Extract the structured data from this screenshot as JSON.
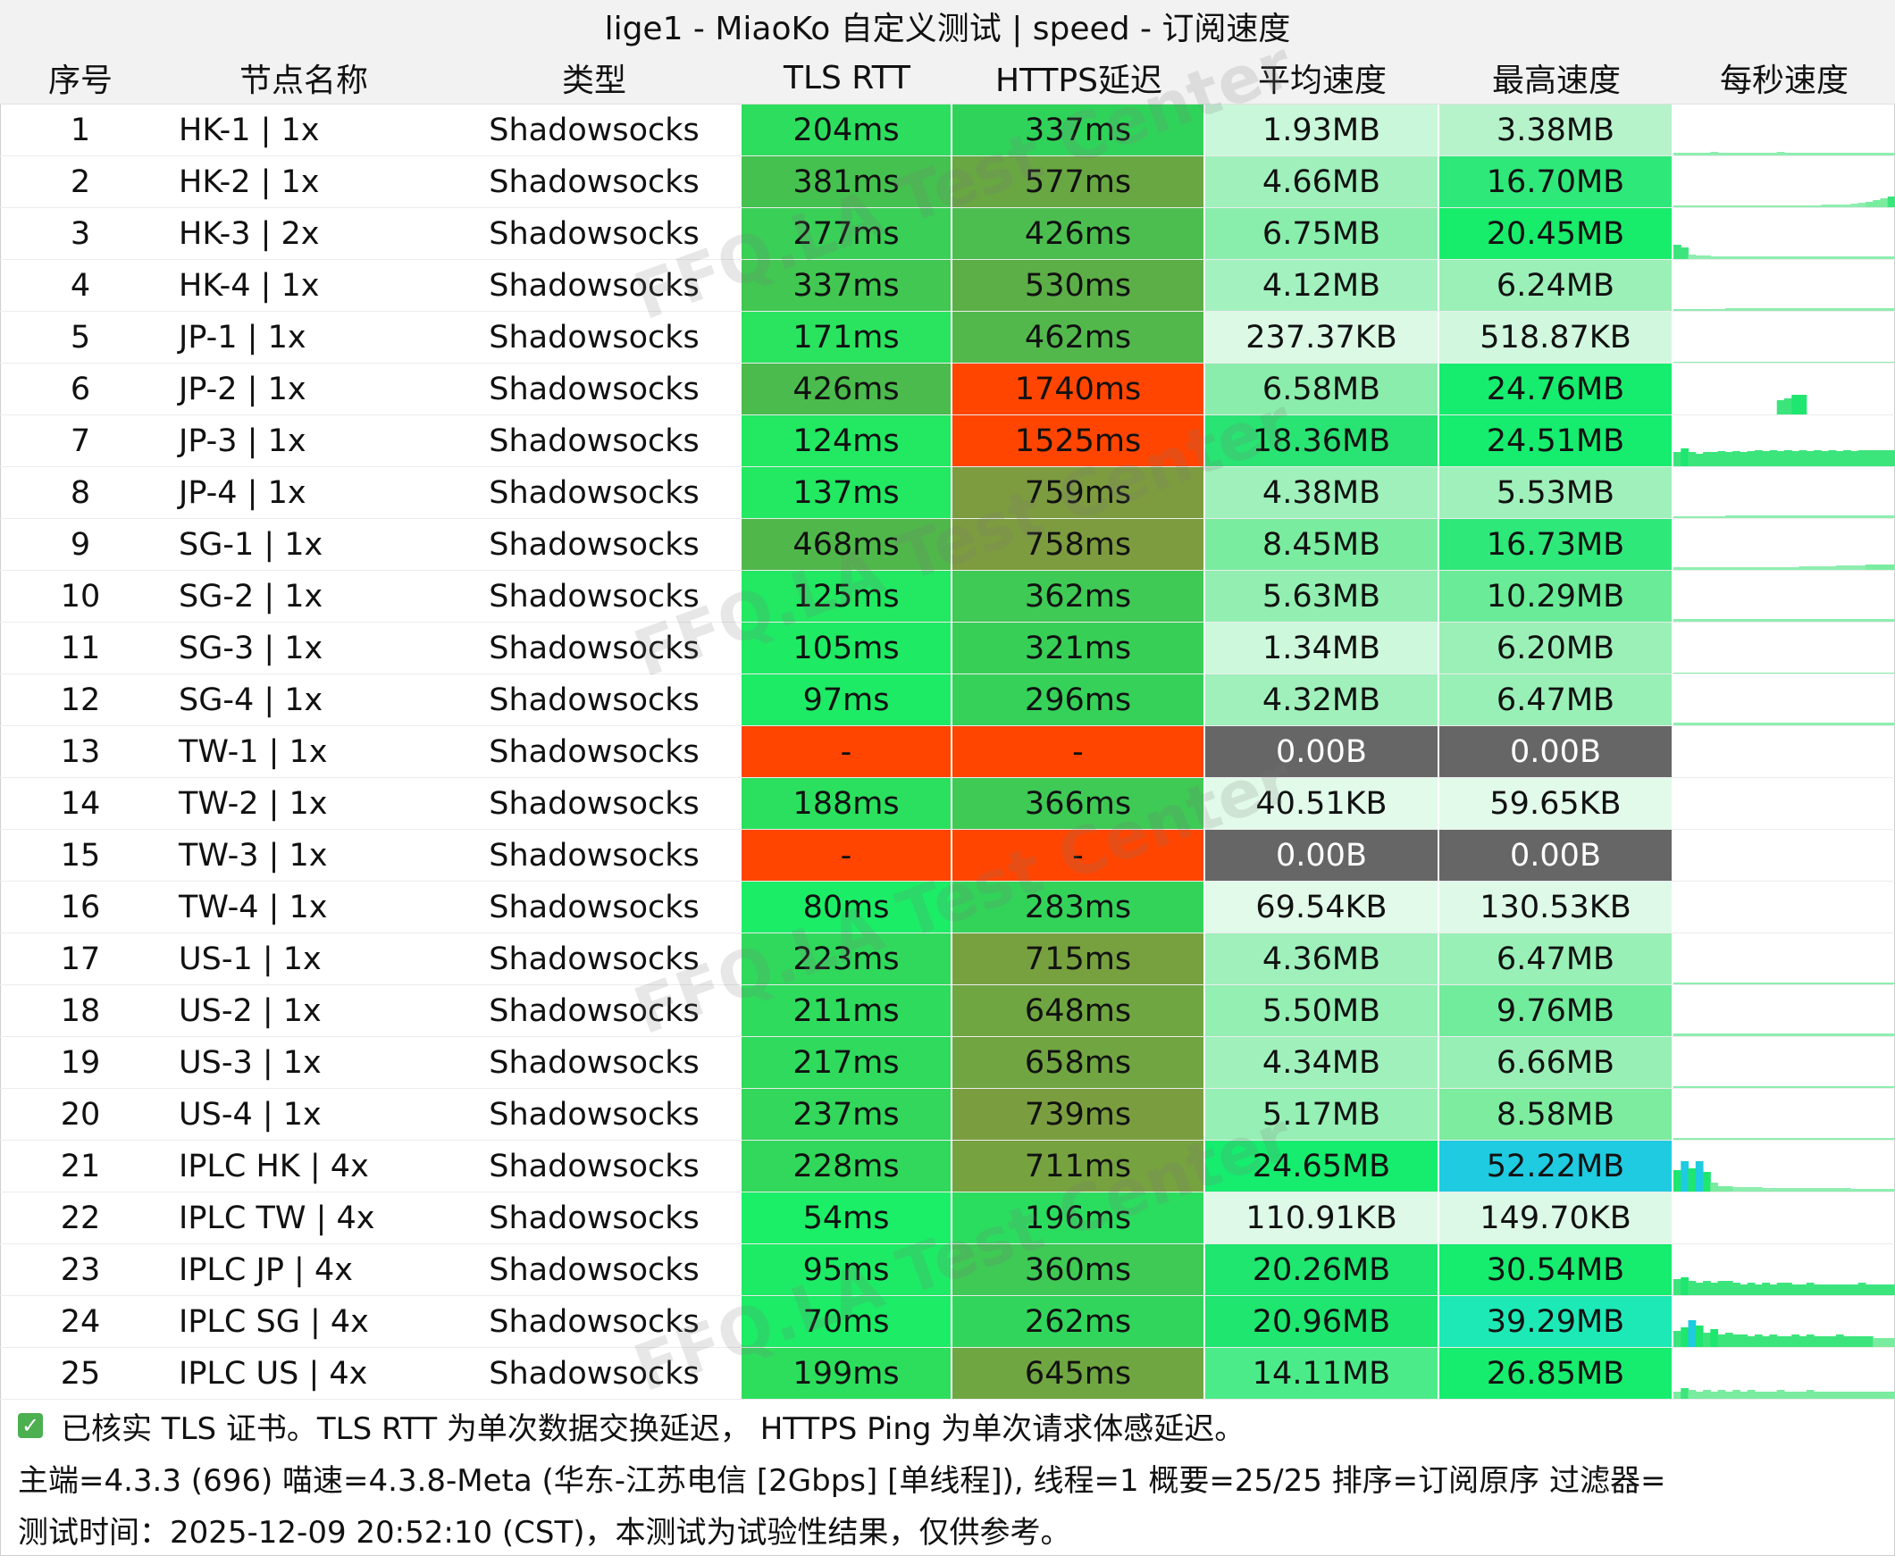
{
  "title": "lige1 - MiaoKo 自定义测试 | speed - 订阅速度",
  "columns": [
    "序号",
    "节点名称",
    "类型",
    "TLS RTT",
    "HTTPS延迟",
    "平均速度",
    "最高速度",
    "每秒速度"
  ],
  "colors": {
    "fail": "#ff4500",
    "zero_speed": "#666666",
    "speed_peak_blue": "#1ecbe1",
    "speed_peak_cyan": "#1de9b6"
  },
  "rows": [
    {
      "idx": "1",
      "name": "HK-1 | 1x",
      "type": "Shadowsocks",
      "tls": "204ms",
      "tls_color": "#2ddd5e",
      "https": "337ms",
      "https_color": "#30d35a",
      "avg": "1.93MB",
      "avg_color": "#c9f7d9",
      "max": "3.38MB",
      "max_color": "#b6f3cb",
      "spark": [
        3,
        3,
        3,
        3,
        3,
        4,
        3,
        3,
        3,
        3,
        3,
        3,
        3,
        3,
        4,
        3,
        3,
        3,
        3,
        3,
        3,
        3,
        3,
        3,
        3,
        3,
        3,
        3,
        3,
        3
      ]
    },
    {
      "idx": "2",
      "name": "HK-2 | 1x",
      "type": "Shadowsocks",
      "tls": "381ms",
      "tls_color": "#45c14f",
      "https": "577ms",
      "https_color": "#68a742",
      "avg": "4.66MB",
      "avg_color": "#9ff0bb",
      "max": "16.70MB",
      "max_color": "#2ee87a",
      "spark": [
        2,
        2,
        2,
        2,
        2,
        2,
        2,
        2,
        2,
        2,
        2,
        2,
        2,
        2,
        2,
        2,
        2,
        2,
        2,
        2,
        3,
        3,
        3,
        3,
        4,
        5,
        6,
        8,
        10,
        12
      ]
    },
    {
      "idx": "3",
      "name": "HK-3 | 2x",
      "type": "Shadowsocks",
      "tls": "277ms",
      "tls_color": "#3acf57",
      "https": "426ms",
      "https_color": "#4bbe4f",
      "avg": "6.75MB",
      "avg_color": "#89eeac",
      "max": "20.45MB",
      "max_color": "#18ec6b",
      "spark": [
        16,
        13,
        5,
        4,
        4,
        3,
        3,
        3,
        3,
        3,
        3,
        3,
        3,
        3,
        3,
        3,
        3,
        3,
        3,
        3,
        3,
        3,
        3,
        3,
        3,
        3,
        3,
        3,
        3,
        3
      ]
    },
    {
      "idx": "4",
      "name": "HK-4 | 1x",
      "type": "Shadowsocks",
      "tls": "337ms",
      "tls_color": "#41c752",
      "https": "530ms",
      "https_color": "#5cae47",
      "avg": "4.12MB",
      "avg_color": "#a3f1bf",
      "max": "6.24MB",
      "max_color": "#9bf0b7",
      "spark": [
        2,
        2,
        2,
        2,
        2,
        2,
        2,
        3,
        3,
        3,
        3,
        3,
        3,
        3,
        3,
        3,
        3,
        3,
        3,
        3,
        3,
        3,
        3,
        3,
        3,
        3,
        3,
        3,
        3,
        3
      ]
    },
    {
      "idx": "5",
      "name": "JP-1 | 1x",
      "type": "Shadowsocks",
      "tls": "171ms",
      "tls_color": "#2ae35f",
      "https": "462ms",
      "https_color": "#52b84c",
      "avg": "237.37KB",
      "avg_color": "#dcf9e6",
      "max": "518.87KB",
      "max_color": "#d1f8df",
      "spark": [
        1,
        1,
        1,
        1,
        1,
        1,
        1,
        1,
        1,
        1,
        1,
        1,
        1,
        1,
        1,
        1,
        1,
        1,
        1,
        1,
        1,
        1,
        1,
        1,
        1,
        1,
        1,
        1,
        1,
        1
      ]
    },
    {
      "idx": "6",
      "name": "JP-2 | 1x",
      "type": "Shadowsocks",
      "tls": "426ms",
      "tls_color": "#4bbb4d",
      "https": "1740ms",
      "https_color": "#ff4500",
      "avg": "6.58MB",
      "avg_color": "#8bedab",
      "max": "24.76MB",
      "max_color": "#16ec6e",
      "spark": [
        0,
        0,
        0,
        0,
        0,
        0,
        0,
        0,
        0,
        0,
        0,
        0,
        0,
        0,
        16,
        18,
        22,
        22,
        0,
        0,
        0,
        0,
        0,
        0,
        0,
        0,
        0,
        0,
        0,
        0
      ]
    },
    {
      "idx": "7",
      "name": "JP-3 | 1x",
      "type": "Shadowsocks",
      "tls": "124ms",
      "tls_color": "#22e862",
      "https": "1525ms",
      "https_color": "#ff4500",
      "avg": "18.36MB",
      "avg_color": "#29e372",
      "max": "24.51MB",
      "max_color": "#16ec6e",
      "spark": [
        16,
        20,
        16,
        14,
        16,
        16,
        17,
        16,
        17,
        16,
        17,
        18,
        17,
        18,
        17,
        18,
        17,
        18,
        17,
        18,
        17,
        18,
        17,
        18,
        17,
        18,
        18,
        18,
        18,
        18
      ]
    },
    {
      "idx": "8",
      "name": "JP-4 | 1x",
      "type": "Shadowsocks",
      "tls": "137ms",
      "tls_color": "#22e862",
      "https": "759ms",
      "https_color": "#7d9c3f",
      "avg": "4.38MB",
      "avg_color": "#9ff0bb",
      "max": "5.53MB",
      "max_color": "#a0f0bb",
      "spark": [
        2,
        2,
        2,
        2,
        2,
        2,
        2,
        3,
        3,
        3,
        3,
        3,
        3,
        3,
        3,
        3,
        3,
        3,
        3,
        3,
        3,
        3,
        3,
        3,
        3,
        3,
        3,
        3,
        3,
        3
      ]
    },
    {
      "idx": "9",
      "name": "SG-1 | 1x",
      "type": "Shadowsocks",
      "tls": "468ms",
      "tls_color": "#50b84b",
      "https": "758ms",
      "https_color": "#7d9c3f",
      "avg": "8.45MB",
      "avg_color": "#7aec9f",
      "max": "16.73MB",
      "max_color": "#2ee87a",
      "spark": [
        3,
        3,
        3,
        3,
        3,
        3,
        3,
        3,
        3,
        3,
        3,
        3,
        3,
        3,
        3,
        3,
        3,
        4,
        4,
        4,
        4,
        4,
        5,
        5,
        5,
        5,
        6,
        6,
        6,
        6
      ]
    },
    {
      "idx": "10",
      "name": "SG-2 | 1x",
      "type": "Shadowsocks",
      "tls": "125ms",
      "tls_color": "#22e862",
      "https": "362ms",
      "https_color": "#3fc955",
      "avg": "5.63MB",
      "avg_color": "#92efb1",
      "max": "10.29MB",
      "max_color": "#69eb97",
      "spark": [
        3,
        3,
        3,
        3,
        3,
        3,
        3,
        3,
        3,
        3,
        3,
        3,
        3,
        3,
        3,
        3,
        3,
        3,
        3,
        3,
        3,
        3,
        3,
        3,
        3,
        3,
        3,
        3,
        3,
        3
      ]
    },
    {
      "idx": "11",
      "name": "SG-3 | 1x",
      "type": "Shadowsocks",
      "tls": "105ms",
      "tls_color": "#1fea64",
      "https": "321ms",
      "https_color": "#38cf57",
      "avg": "1.34MB",
      "avg_color": "#cdf8dc",
      "max": "6.20MB",
      "max_color": "#9bf0b7",
      "spark": [
        1,
        1,
        1,
        1,
        1,
        1,
        1,
        1,
        1,
        1,
        1,
        1,
        1,
        1,
        1,
        1,
        1,
        1,
        1,
        1,
        1,
        1,
        1,
        1,
        1,
        1,
        1,
        1,
        1,
        1
      ]
    },
    {
      "idx": "12",
      "name": "SG-4 | 1x",
      "type": "Shadowsocks",
      "tls": "97ms",
      "tls_color": "#1eeb65",
      "https": "296ms",
      "https_color": "#35d159",
      "avg": "4.32MB",
      "avg_color": "#a0f0bb",
      "max": "6.47MB",
      "max_color": "#99f0b6",
      "spark": [
        3,
        3,
        3,
        3,
        3,
        3,
        3,
        3,
        3,
        3,
        3,
        3,
        3,
        3,
        3,
        3,
        3,
        3,
        3,
        3,
        3,
        3,
        3,
        3,
        3,
        3,
        3,
        3,
        3,
        3
      ]
    },
    {
      "idx": "13",
      "name": "TW-1 | 1x",
      "type": "Shadowsocks",
      "tls": "-",
      "tls_color": "#ff4500",
      "https": "-",
      "https_color": "#ff4500",
      "avg": "0.00B",
      "avg_color": "#666666",
      "max": "0.00B",
      "max_color": "#666666",
      "spark": []
    },
    {
      "idx": "14",
      "name": "TW-2 | 1x",
      "type": "Shadowsocks",
      "tls": "188ms",
      "tls_color": "#2be05e",
      "https": "366ms",
      "https_color": "#3fc955",
      "avg": "40.51KB",
      "avg_color": "#e2faea",
      "max": "59.65KB",
      "max_color": "#e2faea",
      "spark": []
    },
    {
      "idx": "15",
      "name": "TW-3 | 1x",
      "type": "Shadowsocks",
      "tls": "-",
      "tls_color": "#ff4500",
      "https": "-",
      "https_color": "#ff4500",
      "avg": "0.00B",
      "avg_color": "#666666",
      "max": "0.00B",
      "max_color": "#666666",
      "spark": []
    },
    {
      "idx": "16",
      "name": "TW-4 | 1x",
      "type": "Shadowsocks",
      "tls": "80ms",
      "tls_color": "#1ced66",
      "https": "283ms",
      "https_color": "#33d35a",
      "avg": "69.54KB",
      "avg_color": "#e1faea",
      "max": "130.53KB",
      "max_color": "#def9e8",
      "spark": []
    },
    {
      "idx": "17",
      "name": "US-1 | 1x",
      "type": "Shadowsocks",
      "tls": "223ms",
      "tls_color": "#30d95c",
      "https": "715ms",
      "https_color": "#77a13f",
      "avg": "4.36MB",
      "avg_color": "#9ff0bb",
      "max": "6.47MB",
      "max_color": "#99f0b6",
      "spark": [
        2,
        2,
        2,
        2,
        2,
        2,
        2,
        2,
        2,
        2,
        2,
        2,
        2,
        2,
        2,
        2,
        2,
        2,
        2,
        2,
        2,
        2,
        2,
        2,
        2,
        2,
        2,
        2,
        2,
        2
      ]
    },
    {
      "idx": "18",
      "name": "US-2 | 1x",
      "type": "Shadowsocks",
      "tls": "211ms",
      "tls_color": "#2edb5d",
      "https": "648ms",
      "https_color": "#6fa641",
      "avg": "5.50MB",
      "avg_color": "#93efb2",
      "max": "9.76MB",
      "max_color": "#71ec9c",
      "spark": [
        3,
        3,
        3,
        3,
        3,
        3,
        3,
        3,
        3,
        3,
        3,
        3,
        3,
        3,
        3,
        3,
        3,
        3,
        3,
        3,
        3,
        3,
        3,
        3,
        3,
        3,
        3,
        3,
        3,
        3
      ]
    },
    {
      "idx": "19",
      "name": "US-3 | 1x",
      "type": "Shadowsocks",
      "tls": "217ms",
      "tls_color": "#2fda5c",
      "https": "658ms",
      "https_color": "#70a541",
      "avg": "4.34MB",
      "avg_color": "#a0f0bb",
      "max": "6.66MB",
      "max_color": "#98efb5",
      "spark": [
        2,
        2,
        2,
        2,
        2,
        2,
        2,
        2,
        2,
        2,
        2,
        2,
        2,
        2,
        2,
        2,
        2,
        2,
        2,
        2,
        2,
        2,
        2,
        2,
        2,
        2,
        2,
        2,
        2,
        2
      ]
    },
    {
      "idx": "20",
      "name": "US-4 | 1x",
      "type": "Shadowsocks",
      "tls": "237ms",
      "tls_color": "#33d75b",
      "https": "739ms",
      "https_color": "#7a9e3f",
      "avg": "5.17MB",
      "avg_color": "#96efb4",
      "max": "8.58MB",
      "max_color": "#7dec9f",
      "spark": [
        2,
        2,
        2,
        2,
        2,
        2,
        2,
        2,
        2,
        2,
        2,
        2,
        2,
        2,
        2,
        2,
        2,
        2,
        2,
        2,
        2,
        2,
        2,
        2,
        2,
        2,
        2,
        2,
        2,
        2
      ]
    },
    {
      "idx": "21",
      "name": "IPLC HK | 4x",
      "type": "Shadowsocks",
      "tls": "228ms",
      "tls_color": "#31d85b",
      "https": "711ms",
      "https_color": "#76a240",
      "avg": "24.65MB",
      "avg_color": "#16ec6e",
      "max": "52.22MB",
      "max_color": "#1ecbe1",
      "spark": [
        24,
        34,
        26,
        34,
        22,
        10,
        6,
        6,
        5,
        5,
        5,
        5,
        4,
        4,
        4,
        4,
        4,
        4,
        4,
        4,
        4,
        4,
        4,
        4,
        3,
        3,
        3,
        3,
        3,
        3
      ]
    },
    {
      "idx": "22",
      "name": "IPLC TW | 4x",
      "type": "Shadowsocks",
      "tls": "54ms",
      "tls_color": "#1bee67",
      "https": "196ms",
      "https_color": "#2bdd5e",
      "avg": "110.91KB",
      "avg_color": "#def9e8",
      "max": "149.70KB",
      "max_color": "#dcf9e7",
      "spark": []
    },
    {
      "idx": "23",
      "name": "IPLC JP | 4x",
      "type": "Shadowsocks",
      "tls": "95ms",
      "tls_color": "#1eeb65",
      "https": "360ms",
      "https_color": "#3fc955",
      "avg": "20.26MB",
      "avg_color": "#1ee66f",
      "max": "30.54MB",
      "max_color": "#16ec6e",
      "spark": [
        18,
        20,
        16,
        14,
        16,
        14,
        16,
        16,
        14,
        12,
        14,
        12,
        14,
        12,
        14,
        14,
        12,
        12,
        14,
        12,
        12,
        12,
        12,
        12,
        12,
        14,
        12,
        12,
        12,
        12
      ]
    },
    {
      "idx": "24",
      "name": "IPLC SG | 4x",
      "type": "Shadowsocks",
      "tls": "70ms",
      "tls_color": "#1cec66",
      "https": "262ms",
      "https_color": "#31d55b",
      "avg": "20.96MB",
      "avg_color": "#1ee66f",
      "max": "39.29MB",
      "max_color": "#1de9b6",
      "spark": [
        18,
        22,
        30,
        24,
        16,
        20,
        14,
        16,
        14,
        14,
        12,
        14,
        12,
        14,
        12,
        12,
        14,
        12,
        14,
        12,
        12,
        12,
        14,
        12,
        12,
        12,
        12,
        10,
        10,
        10
      ]
    },
    {
      "idx": "25",
      "name": "IPLC US | 4x",
      "type": "Shadowsocks",
      "tls": "199ms",
      "tls_color": "#2dde5d",
      "https": "645ms",
      "https_color": "#6fa641",
      "avg": "14.11MB",
      "avg_color": "#4ceb89",
      "max": "26.85MB",
      "max_color": "#16ec6e",
      "spark": [
        8,
        12,
        10,
        8,
        10,
        8,
        10,
        8,
        10,
        8,
        10,
        8,
        8,
        8,
        10,
        8,
        8,
        8,
        10,
        8,
        8,
        8,
        8,
        8,
        8,
        8,
        8,
        8,
        8,
        8
      ]
    }
  ],
  "footer": {
    "note": "已核实 TLS 证书。TLS RTT 为单次数据交换延迟， HTTPS Ping 为单次请求体感延迟。",
    "info": "主端=4.3.3 (696) 喵速=4.3.8-Meta (华东-江苏电信 [2Gbps] [单线程]), 线程=1 概要=25/25 排序=订阅原序 过滤器=",
    "time": "测试时间：2025-12-09 20:52:10 (CST)，本测试为试验性结果，仅供参考。"
  },
  "watermark_text": "FFQ.LA Test Center"
}
